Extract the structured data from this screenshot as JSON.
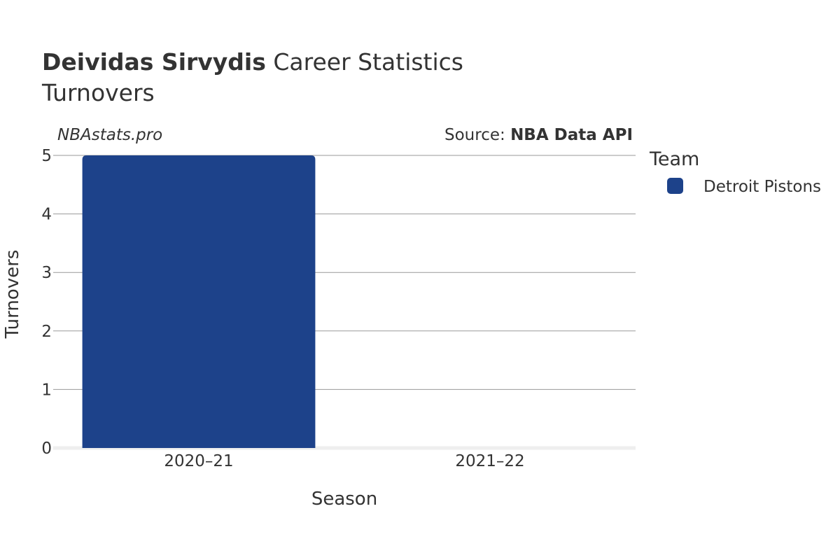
{
  "header": {
    "title_bold": "Deividas Sirvydis",
    "title_rest": " Career Statistics",
    "subtitle": "Turnovers"
  },
  "credits": {
    "site": "NBAstats.pro",
    "source_prefix": "Source: ",
    "source_name": "NBA Data API"
  },
  "legend": {
    "title": "Team"
  },
  "colors": {
    "detroit_pistons": "#1d428a",
    "grid": "#999999",
    "text": "#333333",
    "baseline": "#eeeeee"
  },
  "chart_data": {
    "type": "bar",
    "title": "Deividas Sirvydis Career Statistics",
    "subtitle": "Turnovers",
    "xlabel": "Season",
    "ylabel": "Turnovers",
    "categories": [
      "2020–21",
      "2021–22"
    ],
    "series": [
      {
        "name": "Detroit Pistons",
        "color": "#1d428a",
        "values": [
          5,
          0
        ]
      }
    ],
    "ylim": [
      0,
      5
    ],
    "yticks": [
      0,
      1,
      2,
      3,
      4,
      5
    ],
    "grid": true,
    "legend_position": "right"
  }
}
